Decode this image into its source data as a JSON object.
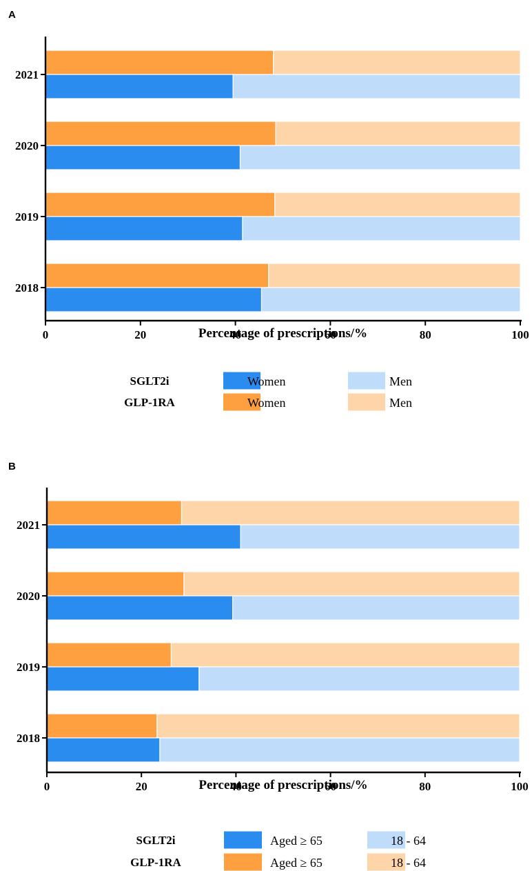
{
  "chart_data": [
    {
      "panel": "A",
      "type": "bar",
      "orientation": "horizontal",
      "stacked": true,
      "categories": [
        "2021",
        "2020",
        "2019",
        "2018"
      ],
      "xlabel": "Percentage of prescriptions/%",
      "xlim": [
        0,
        100
      ],
      "xticks": [
        "0",
        "20",
        "40",
        "60",
        "80",
        "100"
      ],
      "groups": [
        "SGLT2i",
        "GLP-1RA"
      ],
      "series": [
        {
          "group": "GLP-1RA",
          "name": "Women",
          "color": "#FFA040",
          "values": [
            48.0,
            48.5,
            48.3,
            47.0
          ]
        },
        {
          "group": "GLP-1RA",
          "name": "Men",
          "color": "#FDD5A8",
          "values": [
            52.0,
            51.5,
            51.7,
            53.0
          ]
        },
        {
          "group": "SGLT2i",
          "name": "Women",
          "color": "#2B8CF0",
          "values": [
            39.5,
            41.0,
            41.5,
            45.5
          ]
        },
        {
          "group": "SGLT2i",
          "name": "Men",
          "color": "#BFDDFB",
          "values": [
            60.5,
            59.0,
            58.5,
            54.5
          ]
        }
      ],
      "legend": {
        "rows": [
          {
            "group": "SGLT2i",
            "items": [
              {
                "label": "Women",
                "color": "#2B8CF0"
              },
              {
                "label": "Men",
                "color": "#BFDDFB"
              }
            ]
          },
          {
            "group": "GLP-1RA",
            "items": [
              {
                "label": "Women",
                "color": "#FFA040"
              },
              {
                "label": "Men",
                "color": "#FDD5A8"
              }
            ]
          }
        ]
      }
    },
    {
      "panel": "B",
      "type": "bar",
      "orientation": "horizontal",
      "stacked": true,
      "categories": [
        "2021",
        "2020",
        "2019",
        "2018"
      ],
      "xlabel": "Percentage of prescriptions/%",
      "xlim": [
        0,
        100
      ],
      "xticks": [
        "0",
        "20",
        "40",
        "60",
        "80",
        "100"
      ],
      "groups": [
        "SGLT2i",
        "GLP-1RA"
      ],
      "series": [
        {
          "group": "GLP-1RA",
          "name": "Aged ≥ 65",
          "color": "#FFA040",
          "values": [
            28.5,
            29.0,
            26.3,
            23.3
          ]
        },
        {
          "group": "GLP-1RA",
          "name": "18 - 64",
          "color": "#FDD5A8",
          "values": [
            71.5,
            71.0,
            73.7,
            76.7
          ]
        },
        {
          "group": "SGLT2i",
          "name": "Aged ≥ 65",
          "color": "#2B8CF0",
          "values": [
            41.0,
            39.3,
            32.2,
            23.9
          ]
        },
        {
          "group": "SGLT2i",
          "name": "18 - 64",
          "color": "#BFDDFB",
          "values": [
            59.0,
            60.7,
            67.8,
            76.1
          ]
        }
      ],
      "legend": {
        "rows": [
          {
            "group": "SGLT2i",
            "items": [
              {
                "label": "Aged ≥ 65",
                "color": "#2B8CF0"
              },
              {
                "label": "18 - 64",
                "color": "#BFDDFB"
              }
            ]
          },
          {
            "group": "GLP-1RA",
            "items": [
              {
                "label": "Aged ≥ 65",
                "color": "#FFA040"
              },
              {
                "label": "18 - 64",
                "color": "#FDD5A8"
              }
            ]
          }
        ]
      }
    }
  ]
}
